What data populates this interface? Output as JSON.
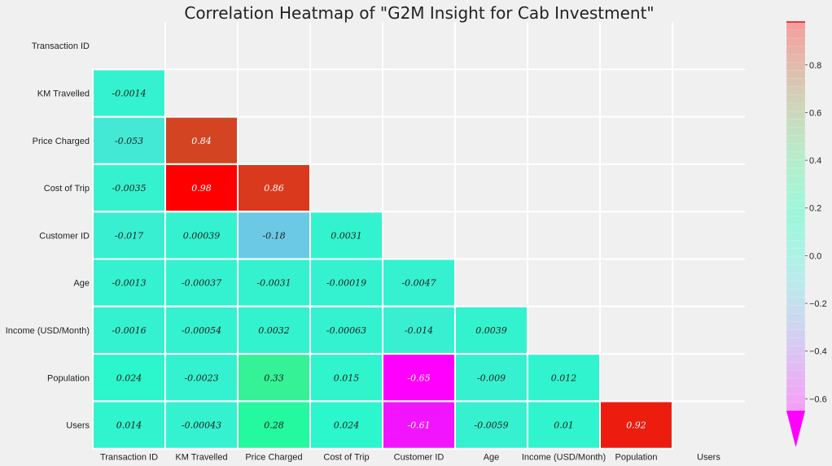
{
  "chart_data": {
    "type": "heatmap",
    "title": "Correlation Heatmap of  \"G2M Insight for Cab Investment\"",
    "labels": [
      "Transaction ID",
      "KM Travelled",
      "Price Charged",
      "Cost of Trip",
      "Customer ID",
      "Age",
      "Income (USD/Month)",
      "Population",
      "Users"
    ],
    "matrix": [
      [
        null,
        null,
        null,
        null,
        null,
        null,
        null,
        null,
        null
      ],
      [
        -0.0014,
        null,
        null,
        null,
        null,
        null,
        null,
        null,
        null
      ],
      [
        -0.053,
        0.84,
        null,
        null,
        null,
        null,
        null,
        null,
        null
      ],
      [
        -0.0035,
        0.98,
        0.86,
        null,
        null,
        null,
        null,
        null,
        null
      ],
      [
        -0.017,
        0.00039,
        -0.18,
        0.0031,
        null,
        null,
        null,
        null,
        null
      ],
      [
        -0.0013,
        -0.00037,
        -0.0031,
        -0.00019,
        -0.0047,
        null,
        null,
        null,
        null
      ],
      [
        -0.0016,
        -0.00054,
        0.0032,
        -0.00063,
        -0.014,
        0.0039,
        null,
        null,
        null
      ],
      [
        0.024,
        -0.0023,
        0.33,
        0.015,
        -0.65,
        -0.009,
        0.012,
        null,
        null
      ],
      [
        0.014,
        -0.00043,
        0.28,
        0.024,
        -0.61,
        -0.0059,
        0.01,
        0.92,
        null
      ]
    ],
    "cell_labels": [
      [
        null,
        null,
        null,
        null,
        null,
        null,
        null,
        null,
        null
      ],
      [
        "-0.0014",
        null,
        null,
        null,
        null,
        null,
        null,
        null,
        null
      ],
      [
        "-0.053",
        "0.84",
        null,
        null,
        null,
        null,
        null,
        null,
        null
      ],
      [
        "-0.0035",
        "0.98",
        "0.86",
        null,
        null,
        null,
        null,
        null,
        null
      ],
      [
        "-0.017",
        "0.00039",
        "-0.18",
        "0.0031",
        null,
        null,
        null,
        null,
        null
      ],
      [
        "-0.0013",
        "-0.00037",
        "-0.0031",
        "-0.00019",
        "-0.0047",
        null,
        null,
        null,
        null
      ],
      [
        "-0.0016",
        "-0.00054",
        "0.0032",
        "-0.00063",
        "-0.014",
        "0.0039",
        null,
        null,
        null
      ],
      [
        "0.024",
        "-0.0023",
        "0.33",
        "0.015",
        "-0.65",
        "-0.009",
        "0.012",
        null,
        null
      ],
      [
        "0.014",
        "-0.00043",
        "0.28",
        "0.024",
        "-0.61",
        "-0.0059",
        "0.01",
        "0.92",
        null
      ]
    ],
    "mask": "upper triangle incl. diagonal",
    "colormap": "rainbow",
    "vmin": -0.65,
    "vmax": 0.98,
    "colorbar": {
      "ticks": [
        0.8,
        0.6,
        0.4,
        0.2,
        0.0,
        -0.2,
        -0.4,
        -0.6
      ],
      "tick_labels": [
        "0.8",
        "0.6",
        "0.4",
        "0.2",
        "0.0",
        "−0.2",
        "−0.4",
        "−0.6"
      ],
      "range": [
        -0.65,
        0.98
      ],
      "extend": "min",
      "placement": "right"
    },
    "cell_border_color": "#ffffff",
    "background": "#f0f0f0"
  }
}
